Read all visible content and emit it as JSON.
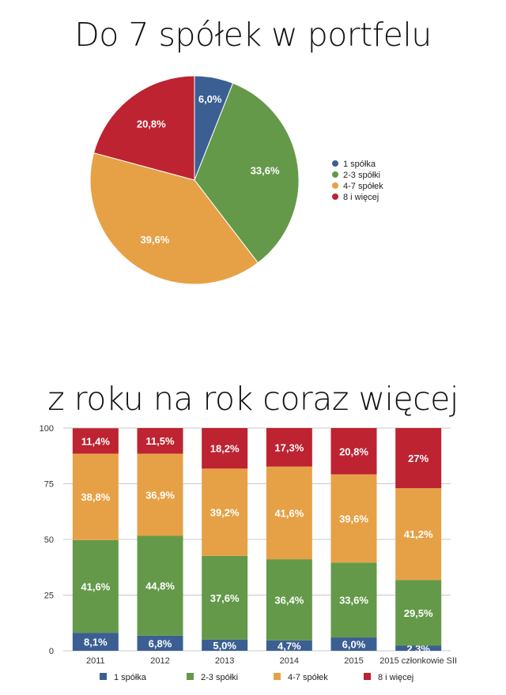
{
  "colors": {
    "s1": "#3b5f93",
    "s2": "#64994a",
    "s3": "#e6a146",
    "s4": "#bd2331"
  },
  "pie_title": "Do 7 spółek w portfelu",
  "bar_title": "z roku na rok coraz więcej",
  "chart_data": [
    {
      "type": "pie",
      "title": "Do 7 spółek w portfelu",
      "labels": [
        "1 spółka",
        "2-3 spółki",
        "4-7 spółek",
        "8 i więcej"
      ],
      "values": [
        6.0,
        33.6,
        39.6,
        20.8
      ],
      "value_labels": [
        "6,0%",
        "33,6%",
        "39,6%",
        "20,8%"
      ],
      "legend": [
        "1 spółka",
        "2-3 spółki",
        "4-7 spółek",
        "8 i więcej"
      ],
      "legend_position": "right"
    },
    {
      "type": "bar",
      "stacked": true,
      "title": "z roku na rok coraz więcej",
      "categories": [
        "2011",
        "2012",
        "2013",
        "2014",
        "2015",
        "2015 członkowie SII"
      ],
      "ylim": [
        0,
        100
      ],
      "yticks": [
        "0",
        "25",
        "50",
        "75",
        "100"
      ],
      "grid": true,
      "legend_position": "bottom",
      "series": [
        {
          "name": "1 spółka",
          "values": [
            8.1,
            6.8,
            5.0,
            4.7,
            6.0,
            2.3
          ],
          "labels": [
            "8,1%",
            "6,8%",
            "5,0%",
            "4,7%",
            "6,0%",
            "2,3%"
          ]
        },
        {
          "name": "2-3 spółki",
          "values": [
            41.6,
            44.8,
            37.6,
            36.4,
            33.6,
            29.5
          ],
          "labels": [
            "41,6%",
            "44,8%",
            "37,6%",
            "36,4%",
            "33,6%",
            "29,5%"
          ]
        },
        {
          "name": "4-7 spółek",
          "values": [
            38.8,
            36.9,
            39.2,
            41.6,
            39.6,
            41.2
          ],
          "labels": [
            "38,8%",
            "36,9%",
            "39,2%",
            "41,6%",
            "39,6%",
            "41,2%"
          ]
        },
        {
          "name": "8 i więcej",
          "values": [
            11.4,
            11.5,
            18.2,
            17.3,
            20.8,
            27.0
          ],
          "labels": [
            "11,4%",
            "11,5%",
            "18,2%",
            "17,3%",
            "20,8%",
            "27%"
          ]
        }
      ]
    }
  ]
}
